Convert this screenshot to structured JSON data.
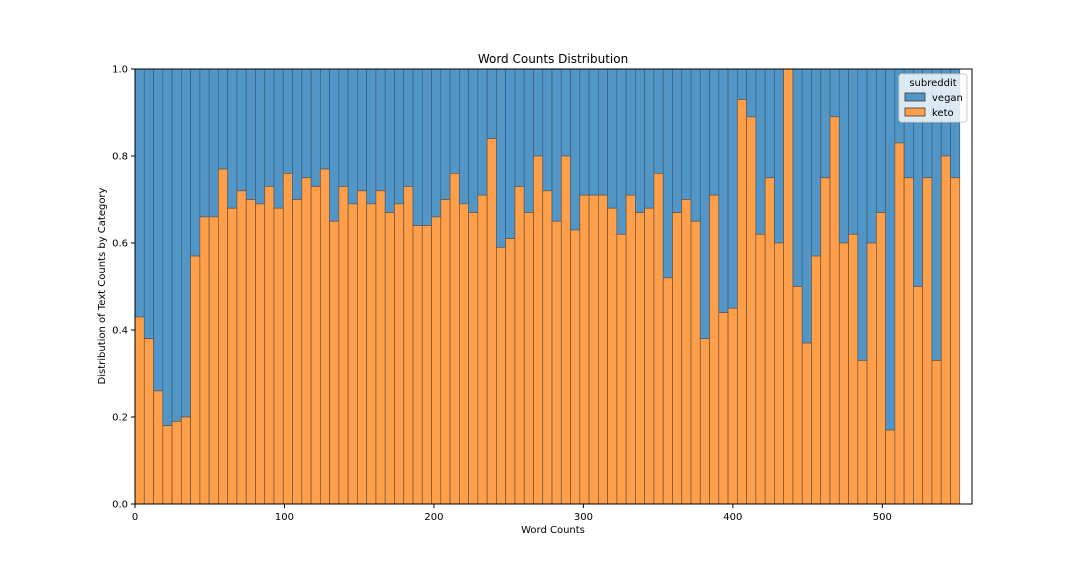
{
  "chart_data": {
    "type": "bar",
    "title": "Word Counts Distribution",
    "xlabel": "Word Counts",
    "ylabel": "Distribution of Text Counts by Category",
    "xlim": [
      0,
      560
    ],
    "ylim": [
      0,
      1.0
    ],
    "bin_width": 6.2,
    "xticks": [
      0,
      100,
      200,
      300,
      400,
      500
    ],
    "yticks": [
      0.0,
      0.2,
      0.4,
      0.6,
      0.8,
      1.0
    ],
    "legend": {
      "title": "subreddit",
      "position": "top-right"
    },
    "stacked": "fill",
    "series": [
      {
        "name": "vegan",
        "color": "#5196c6"
      },
      {
        "name": "keto",
        "color": "#ff9f4a"
      }
    ],
    "keto_share": [
      0.43,
      0.38,
      0.26,
      0.18,
      0.19,
      0.2,
      0.57,
      0.66,
      0.66,
      0.77,
      0.68,
      0.72,
      0.7,
      0.69,
      0.73,
      0.68,
      0.76,
      0.7,
      0.75,
      0.73,
      0.77,
      0.65,
      0.73,
      0.69,
      0.72,
      0.69,
      0.72,
      0.67,
      0.69,
      0.73,
      0.64,
      0.64,
      0.66,
      0.7,
      0.76,
      0.69,
      0.67,
      0.71,
      0.84,
      0.59,
      0.61,
      0.73,
      0.67,
      0.8,
      0.72,
      0.65,
      0.8,
      0.63,
      0.71,
      0.71,
      0.71,
      0.68,
      0.62,
      0.71,
      0.67,
      0.68,
      0.76,
      0.52,
      0.67,
      0.7,
      0.65,
      0.38,
      0.71,
      0.44,
      0.45,
      0.93,
      0.89,
      0.62,
      0.75,
      0.6,
      1.0,
      0.5,
      0.37,
      0.57,
      0.75,
      0.89,
      0.6,
      0.62,
      0.33,
      0.6,
      0.67,
      0.17,
      0.83,
      0.75,
      0.5,
      0.75,
      0.33,
      0.8,
      0.75
    ]
  }
}
